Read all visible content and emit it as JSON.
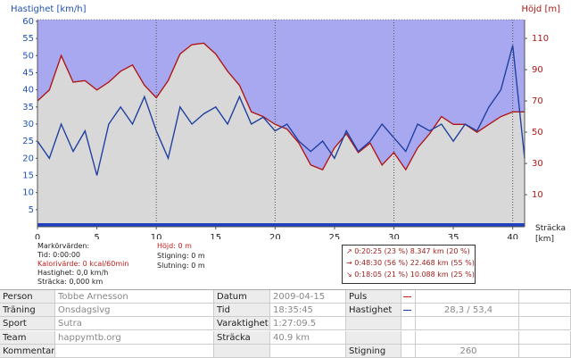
{
  "chart_data": {
    "type": "line",
    "y_label": "Hastighet [km/h]",
    "y2_label": "Höjd [m]",
    "x_label": "Sträcka [km]",
    "xlim": [
      0,
      41
    ],
    "xticks": [
      0,
      5,
      10,
      15,
      20,
      25,
      30,
      35,
      40
    ],
    "ylim": [
      0,
      60.5
    ],
    "yticks": [
      5,
      10,
      15,
      20,
      25,
      30,
      35,
      40,
      45,
      50,
      55,
      60
    ],
    "y2lim": [
      -10.5,
      122
    ],
    "y2ticks": [
      10,
      30,
      50,
      70,
      90,
      110
    ],
    "lap_markers": [
      10,
      20,
      30,
      40
    ],
    "x": [
      0,
      1,
      2,
      3,
      4,
      5,
      6,
      7,
      8,
      9,
      10,
      11,
      12,
      13,
      14,
      15,
      16,
      17,
      18,
      19,
      20,
      21,
      22,
      23,
      24,
      25,
      26,
      27,
      28,
      29,
      30,
      31,
      32,
      33,
      34,
      35,
      36,
      37,
      38,
      39,
      40,
      41
    ],
    "series": [
      {
        "name": "Höjd",
        "color": "#b01818",
        "axis": "y2",
        "fill": "#d8d8d8",
        "values": [
          70,
          77,
          99,
          82,
          83,
          77,
          82,
          89,
          93,
          80,
          72,
          83,
          100,
          106,
          107,
          100,
          89,
          80,
          63,
          60,
          55,
          52,
          43,
          29,
          26,
          40,
          49,
          37,
          43,
          29,
          37,
          26,
          40,
          49,
          60,
          55,
          55,
          50,
          55,
          60,
          63,
          63
        ]
      },
      {
        "name": "Hastighet",
        "color": "#2040a0",
        "values": [
          25,
          20,
          30,
          22,
          28,
          15,
          30,
          35,
          30,
          38,
          28,
          20,
          35,
          30,
          33,
          35,
          30,
          38,
          30,
          32,
          28,
          30,
          25,
          22,
          25,
          20,
          28,
          22,
          25,
          30,
          26,
          22,
          30,
          28,
          30,
          25,
          30,
          28,
          35,
          40,
          53,
          20
        ]
      }
    ]
  },
  "markers": {
    "heading": "Markörvärden:",
    "time": "Tid: 0:00:00",
    "calories": "Kalorivärde: 0 kcal/60min",
    "speed": "Hastighet: 0,0 km/h",
    "distance": "Sträcka: 0,000 km",
    "altitude": "Höjd: 0 m",
    "climb": "Stigning: 0 m",
    "descent": "Slutning: 0 m"
  },
  "summary": [
    "↗ 0:20:25  (23 %)  8.347 km  (20 %)",
    "→ 0:48:30  (56 %)  22.468 km  (55 %)",
    "↘ 0:18:05  (21 %)  10.088 km  (25 %)"
  ],
  "table": {
    "rows": [
      {
        "label": "Person",
        "value": "Tobbe Arnesson",
        "label2": "Datum",
        "value2": "2009-04-15",
        "label3": "Puls"
      },
      {
        "label": "Träning",
        "value": "Onsdagslvg",
        "label2": "Tid",
        "value2": "18:35:45",
        "label3": "Hastighet",
        "value3": "28,3 / 53,4"
      },
      {
        "label": "Sport",
        "value": "Sutra",
        "label2": "Varaktighet",
        "value2": "1:27:09.5"
      },
      {
        "label": "Team",
        "value": "happymtb.org",
        "label2": "Sträcka",
        "value2": "40.9 km"
      },
      {
        "label": "Kommentar",
        "label3": "Stigning",
        "value3": "260"
      }
    ]
  }
}
